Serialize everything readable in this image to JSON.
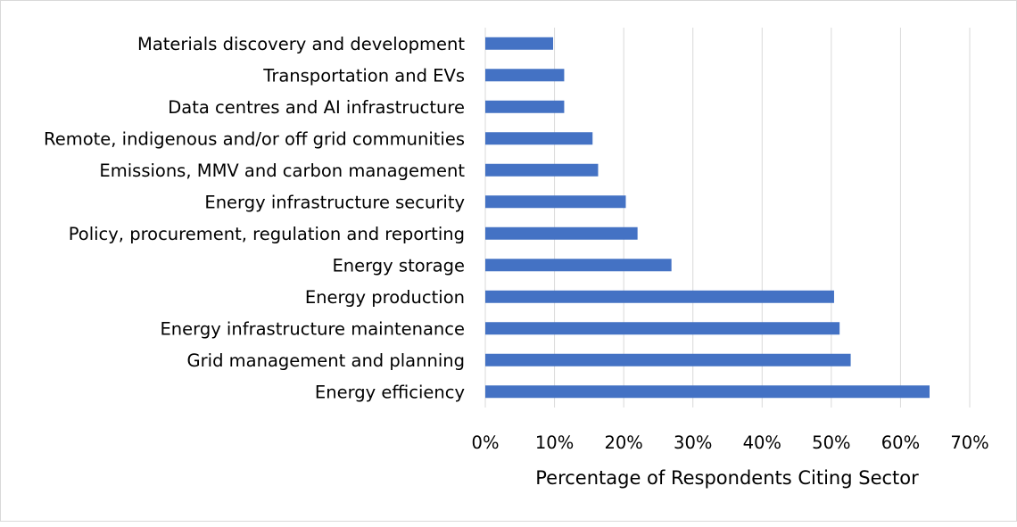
{
  "chart_data": {
    "type": "bar",
    "orientation": "horizontal",
    "categories": [
      "Materials discovery and development",
      "Transportation and EVs",
      "Data centres and AI infrastructure",
      "Remote, indigenous and/or off grid communities",
      "Emissions, MMV and carbon management",
      "Energy infrastructure security",
      "Policy, procurement, regulation and reporting",
      "Energy storage",
      "Energy production",
      "Energy infrastructure maintenance",
      "Grid management and planning",
      "Energy efficiency"
    ],
    "values": [
      9.8,
      11.4,
      11.4,
      15.5,
      16.3,
      20.3,
      22.0,
      26.9,
      50.4,
      51.2,
      52.8,
      64.2
    ],
    "xlim": [
      0,
      70
    ],
    "x_ticks": [
      "0%",
      "10%",
      "20%",
      "30%",
      "40%",
      "50%",
      "60%",
      "70%"
    ],
    "xlabel": "Percentage of Respondents Citing Sector",
    "ylabel": "",
    "title": "",
    "grid": "vertical",
    "bar_color": "#4472c4",
    "grid_color": "#d9d9d9"
  }
}
